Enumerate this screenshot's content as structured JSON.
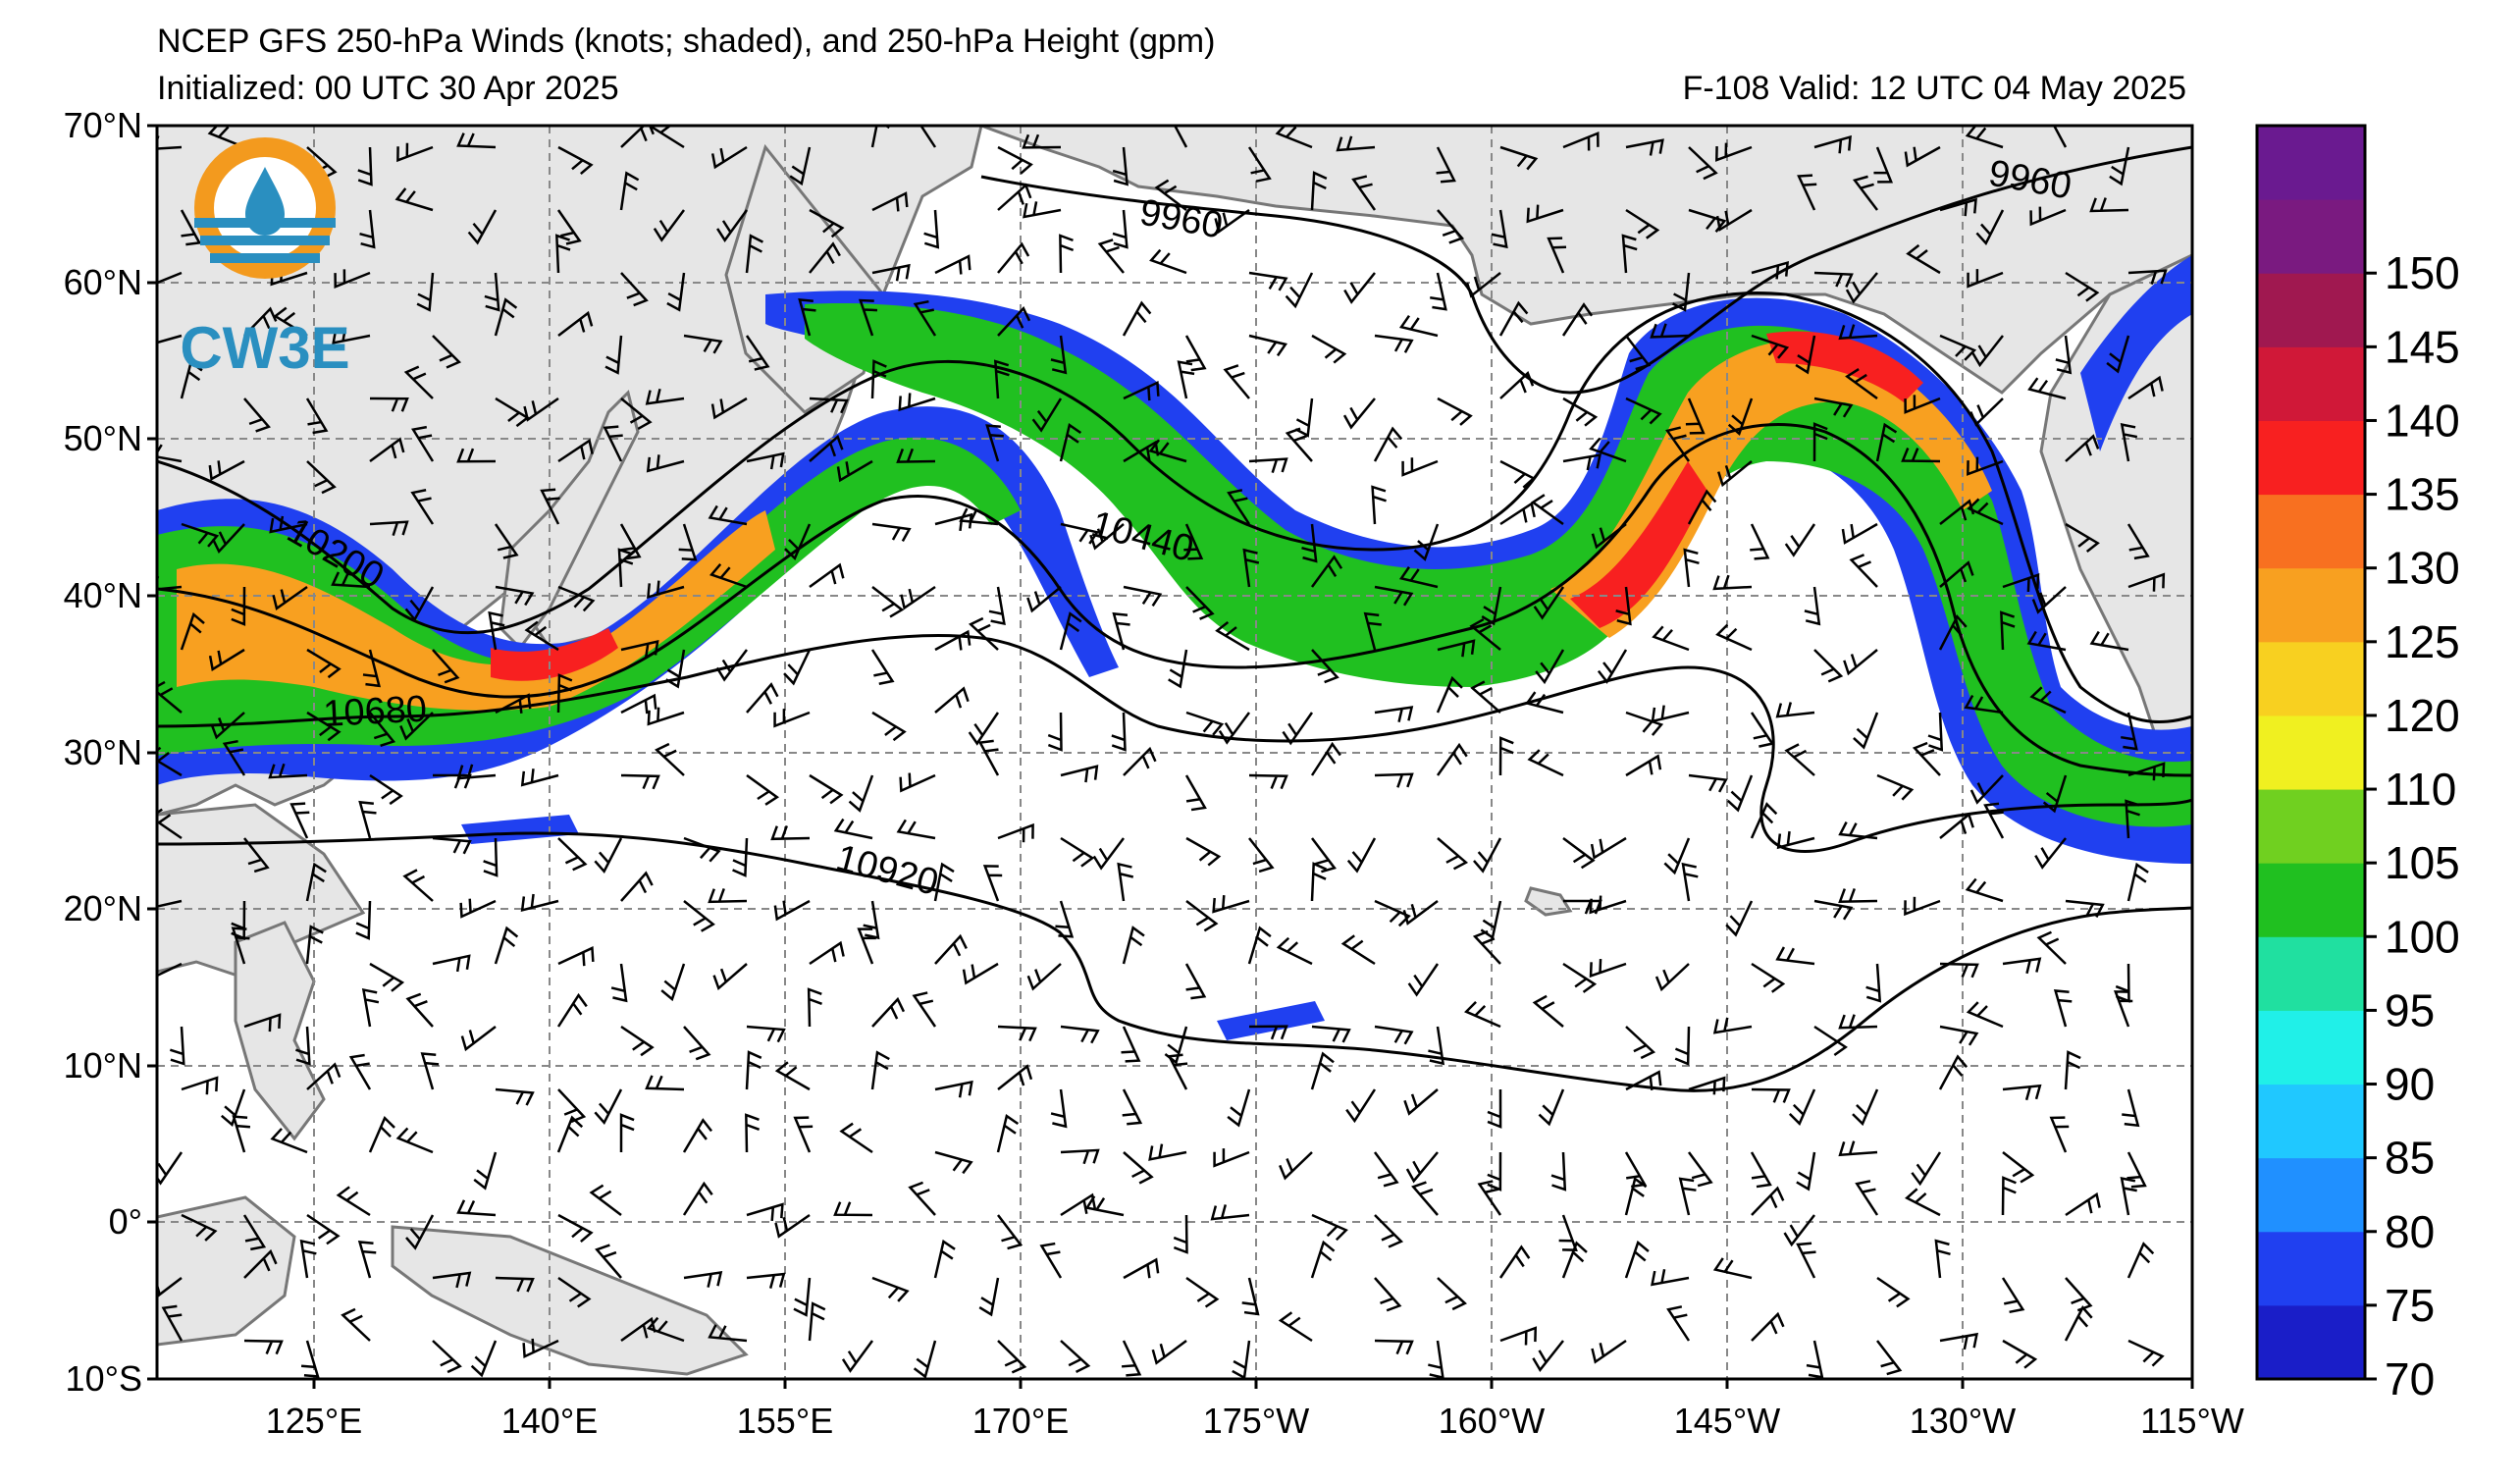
{
  "header": {
    "title": "NCEP GFS 250-hPa Winds (knots; shaded), and 250-hPa Height (gpm)",
    "initialized": "Initialized: 00 UTC 30 Apr 2025",
    "valid": "F-108  Valid: 12 UTC 04 May 2025"
  },
  "logo": {
    "text": "CW3E"
  },
  "map": {
    "lat_labels": [
      "70°N",
      "60°N",
      "50°N",
      "40°N",
      "30°N",
      "20°N",
      "10°N",
      "0°",
      "10°S"
    ],
    "lon_labels": [
      "125°E",
      "140°E",
      "155°E",
      "170°E",
      "175°W",
      "160°W",
      "145°W",
      "130°W",
      "115°W"
    ],
    "contour_labels": [
      "9960",
      "9960",
      "10200",
      "10440",
      "10680",
      "10920"
    ],
    "land_color": "#e6e6e6",
    "ocean_color": "#ffffff",
    "grid": true
  },
  "colorbar": {
    "labels": [
      "70",
      "75",
      "80",
      "85",
      "90",
      "95",
      "100",
      "105",
      "110",
      "120",
      "125",
      "130",
      "135",
      "140",
      "145",
      "150"
    ],
    "colors": [
      "#1a1ec8",
      "#2040f0",
      "#2090ff",
      "#20c8ff",
      "#20f0e8",
      "#20e0a0",
      "#20c020",
      "#70d020",
      "#f0f020",
      "#f8d020",
      "#f8a020",
      "#f87020",
      "#f82020",
      "#d01838",
      "#a01850",
      "#7a1a80",
      "#6a1a90"
    ]
  }
}
